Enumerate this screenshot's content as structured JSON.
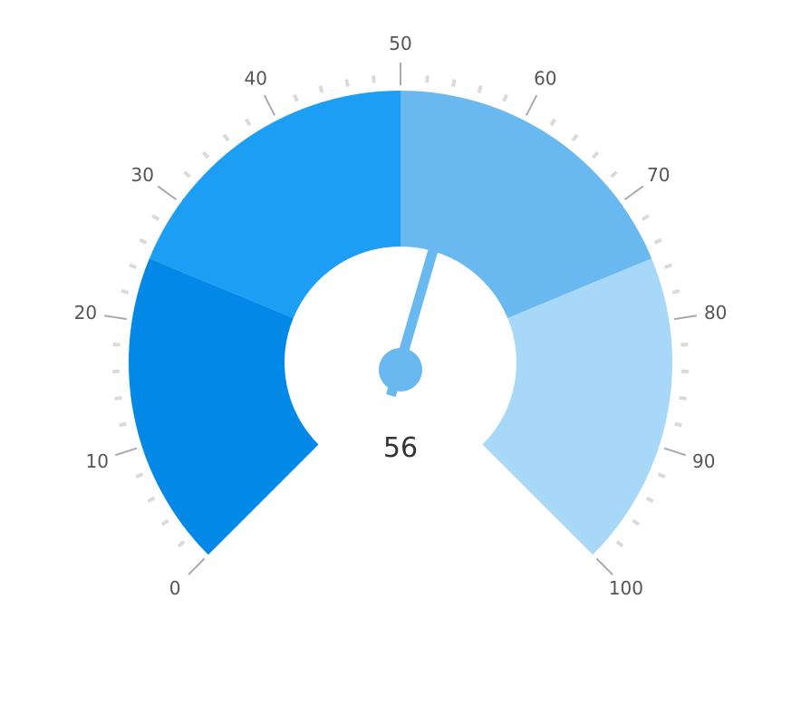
{
  "chart_data": {
    "type": "gauge",
    "value": 56,
    "value_label": "56",
    "range": [
      0,
      100
    ],
    "major_ticks": [
      0,
      10,
      20,
      30,
      40,
      50,
      60,
      70,
      80,
      90,
      100
    ],
    "major_tick_labels": [
      "0",
      "10",
      "20",
      "30",
      "40",
      "50",
      "60",
      "70",
      "80",
      "90",
      "100"
    ],
    "minor_tick_interval": 2,
    "bands": [
      {
        "from": 0,
        "to": 25,
        "color": "#0288e6"
      },
      {
        "from": 25,
        "to": 50,
        "color": "#1d9ef5"
      },
      {
        "from": 50,
        "to": 75,
        "color": "#69b9f0"
      },
      {
        "from": 75,
        "to": 100,
        "color": "#a8d8f8"
      }
    ],
    "needle_color": "#69b9f0",
    "title": ""
  }
}
